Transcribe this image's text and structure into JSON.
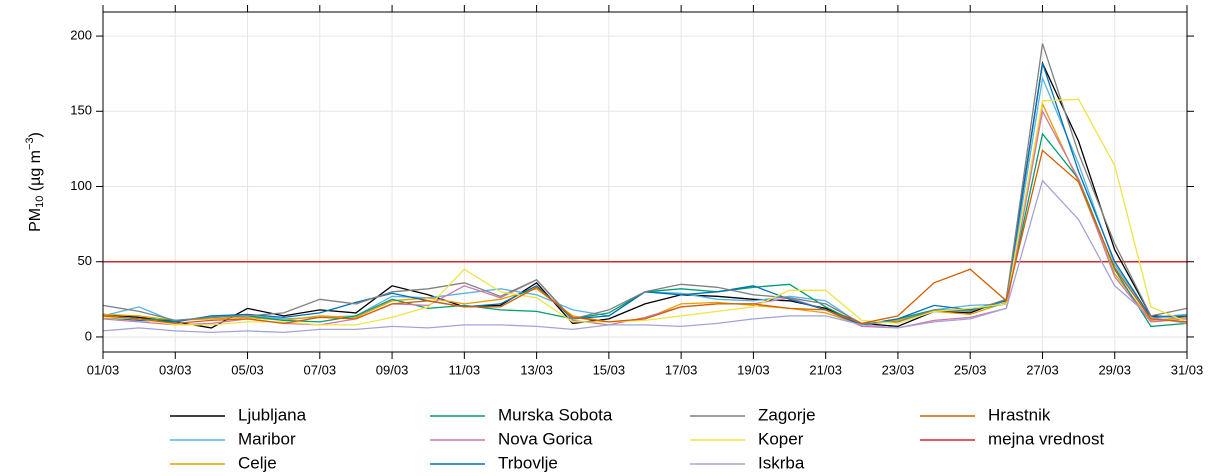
{
  "chart_data": {
    "type": "line",
    "y_label": [
      "PM",
      "10",
      " (µg m",
      "−3",
      ")"
    ],
    "categories": [
      "01/03",
      null,
      "03/03",
      null,
      "05/03",
      null,
      "07/03",
      null,
      "09/03",
      null,
      "11/03",
      null,
      "13/03",
      null,
      "15/03",
      null,
      "17/03",
      null,
      "19/03",
      null,
      "21/03",
      null,
      "23/03",
      null,
      "25/03",
      null,
      "27/03",
      null,
      "29/03",
      null,
      "31/03"
    ],
    "ylim": [
      -10,
      216
    ],
    "yticks": [
      0,
      50,
      100,
      150,
      200
    ],
    "grid": true,
    "series": [
      {
        "name": "Ljubljana",
        "color": "#000000",
        "values": [
          15,
          13,
          10,
          6,
          19,
          14,
          18,
          16,
          34,
          28,
          20,
          21,
          36,
          9,
          12,
          22,
          28,
          27,
          25,
          24,
          19,
          9,
          7,
          17,
          16,
          25,
          182,
          130,
          58,
          14,
          13
        ]
      },
      {
        "name": "Maribor",
        "color": "#56b4e9",
        "values": [
          14,
          20,
          10,
          14,
          14,
          12,
          13,
          14,
          27,
          26,
          29,
          32,
          28,
          18,
          14,
          30,
          29,
          25,
          24,
          27,
          24,
          8,
          11,
          18,
          21,
          22,
          172,
          115,
          48,
          13,
          15
        ]
      },
      {
        "name": "Celje",
        "color": "#e69f00",
        "values": [
          15,
          14,
          11,
          12,
          13,
          11,
          14,
          13,
          24,
          26,
          22,
          25,
          32,
          14,
          10,
          12,
          22,
          23,
          21,
          19,
          16,
          8,
          11,
          17,
          15,
          23,
          155,
          103,
          42,
          11,
          13
        ]
      },
      {
        "name": "Murska Sobota",
        "color": "#009e73",
        "values": [
          14,
          12,
          11,
          13,
          14,
          11,
          10,
          14,
          25,
          19,
          21,
          18,
          17,
          12,
          16,
          30,
          32,
          30,
          33,
          35,
          20,
          8,
          12,
          18,
          18,
          22,
          135,
          105,
          45,
          7,
          9
        ]
      },
      {
        "name": "Nova Gorica",
        "color": "#cc79a7",
        "values": [
          12,
          10,
          8,
          9,
          12,
          9,
          8,
          12,
          22,
          21,
          34,
          26,
          38,
          11,
          8,
          13,
          20,
          22,
          22,
          26,
          18,
          7,
          6,
          11,
          13,
          19,
          150,
          105,
          40,
          10,
          12
        ]
      },
      {
        "name": "Trbovlje",
        "color": "#0072b2",
        "values": [
          13,
          11,
          10,
          14,
          15,
          13,
          16,
          23,
          29,
          24,
          20,
          22,
          34,
          12,
          14,
          30,
          28,
          30,
          34,
          25,
          18,
          8,
          12,
          21,
          18,
          24,
          182,
          110,
          50,
          13,
          14
        ]
      },
      {
        "name": "Zagorje",
        "color": "#808080",
        "values": [
          21,
          17,
          11,
          13,
          14,
          16,
          25,
          22,
          30,
          32,
          36,
          27,
          38,
          12,
          18,
          30,
          35,
          33,
          28,
          26,
          22,
          9,
          10,
          18,
          17,
          25,
          195,
          122,
          62,
          14,
          19
        ]
      },
      {
        "name": "Koper",
        "color": "#f0e442",
        "values": [
          13,
          12,
          8,
          8,
          10,
          10,
          8,
          8,
          13,
          20,
          45,
          30,
          26,
          10,
          10,
          11,
          14,
          17,
          20,
          31,
          31,
          11,
          9,
          17,
          19,
          22,
          157,
          158,
          114,
          20,
          10
        ]
      },
      {
        "name": "Iskrba",
        "color": "#a3a3d9",
        "values": [
          4,
          6,
          4,
          3,
          4,
          3,
          5,
          5,
          7,
          6,
          8,
          8,
          7,
          5,
          8,
          8,
          7,
          9,
          12,
          14,
          14,
          8,
          6,
          10,
          12,
          19,
          104,
          78,
          34,
          13,
          9
        ]
      },
      {
        "name": "Hrastnik",
        "color": "#d55e00",
        "values": [
          14,
          12,
          9,
          11,
          12,
          9,
          13,
          12,
          22,
          24,
          20,
          20,
          33,
          13,
          10,
          12,
          20,
          22,
          22,
          19,
          18,
          9,
          14,
          36,
          45,
          24,
          124,
          103,
          46,
          12,
          10
        ]
      }
    ],
    "reference_line": {
      "name": "mejna vrednost",
      "value": 50,
      "color": "#d62728"
    }
  }
}
